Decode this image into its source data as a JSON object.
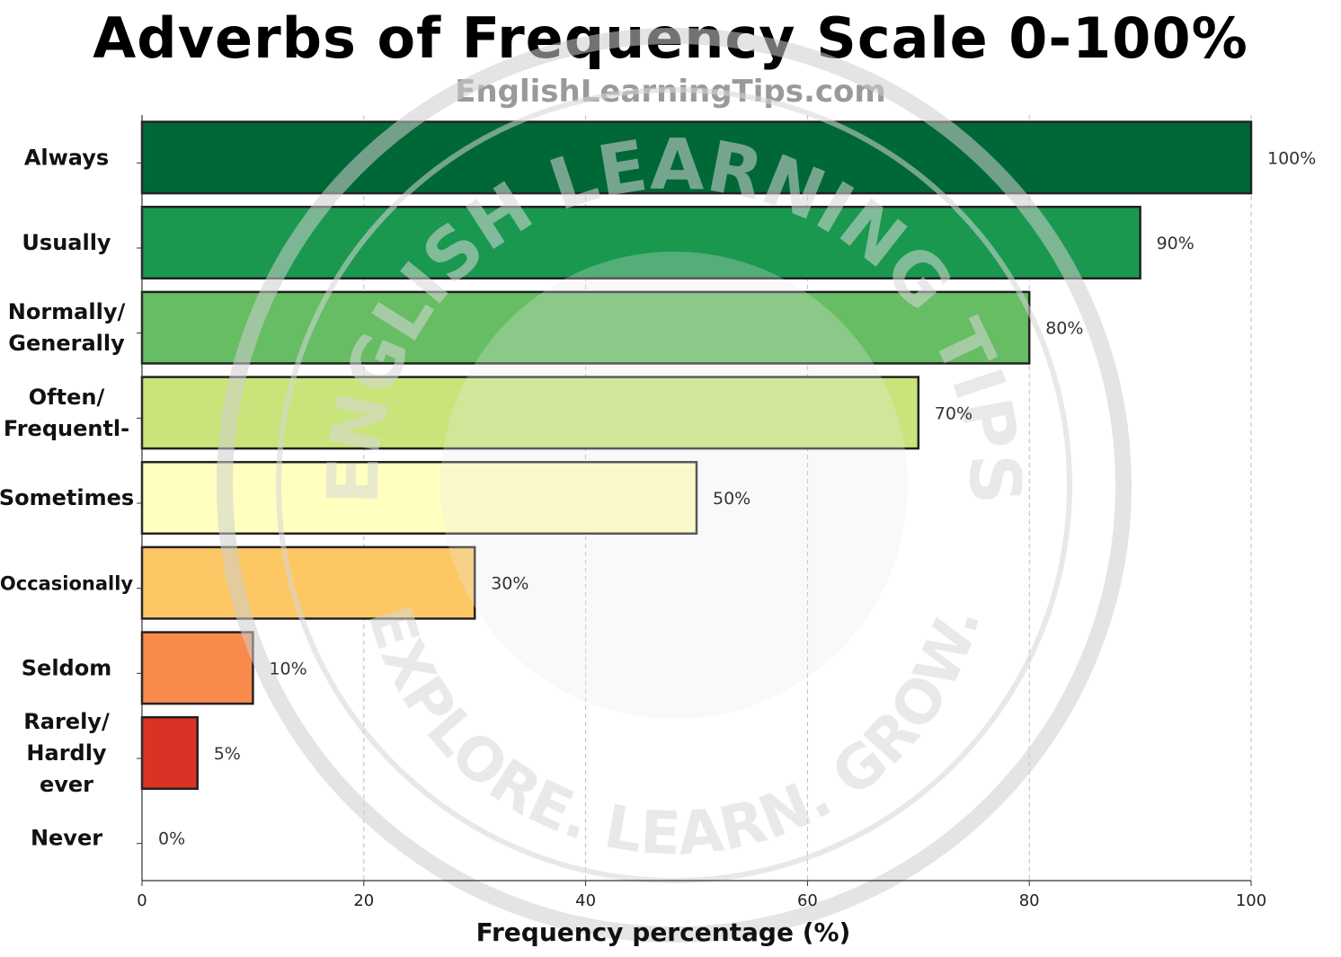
{
  "header": {
    "title": "Adverbs of Frequency Scale 0-100%",
    "subtitle": "EnglishLearningTips.com"
  },
  "watermark": {
    "top_text": "ENGLISH LEARNING TIPS",
    "bottom_text": "EXPLORE. LEARN. GROW."
  },
  "chart_data": {
    "type": "bar",
    "orientation": "horizontal",
    "title": "Adverbs of Frequency Scale 0-100%",
    "xlabel": "Frequency percentage (%)",
    "ylabel": "",
    "xlim": [
      0,
      100
    ],
    "xticks": [
      0,
      20,
      40,
      60,
      80,
      100
    ],
    "grid": "vertical dashed",
    "categories": [
      [
        "Always"
      ],
      [
        "Usually"
      ],
      [
        "Normally/",
        "Generally"
      ],
      [
        "Often/",
        "Frequentl-"
      ],
      [
        "Sometimes"
      ],
      [
        "Occasionally"
      ],
      [
        "Seldom"
      ],
      [
        "Rarely/",
        "Hardly",
        "ever"
      ],
      [
        "Never"
      ]
    ],
    "values": [
      100,
      90,
      80,
      70,
      50,
      30,
      10,
      5,
      0
    ],
    "value_labels": [
      "100%",
      "90%",
      "80%",
      "70%",
      "50%",
      "30%",
      "10%",
      "5%",
      "0%"
    ],
    "colors": [
      "#006837",
      "#1a9850",
      "#66bd63",
      "#c9e47a",
      "#ffffbf",
      "#fdc864",
      "#f88a4b",
      "#dc3225",
      "#a50026"
    ]
  }
}
